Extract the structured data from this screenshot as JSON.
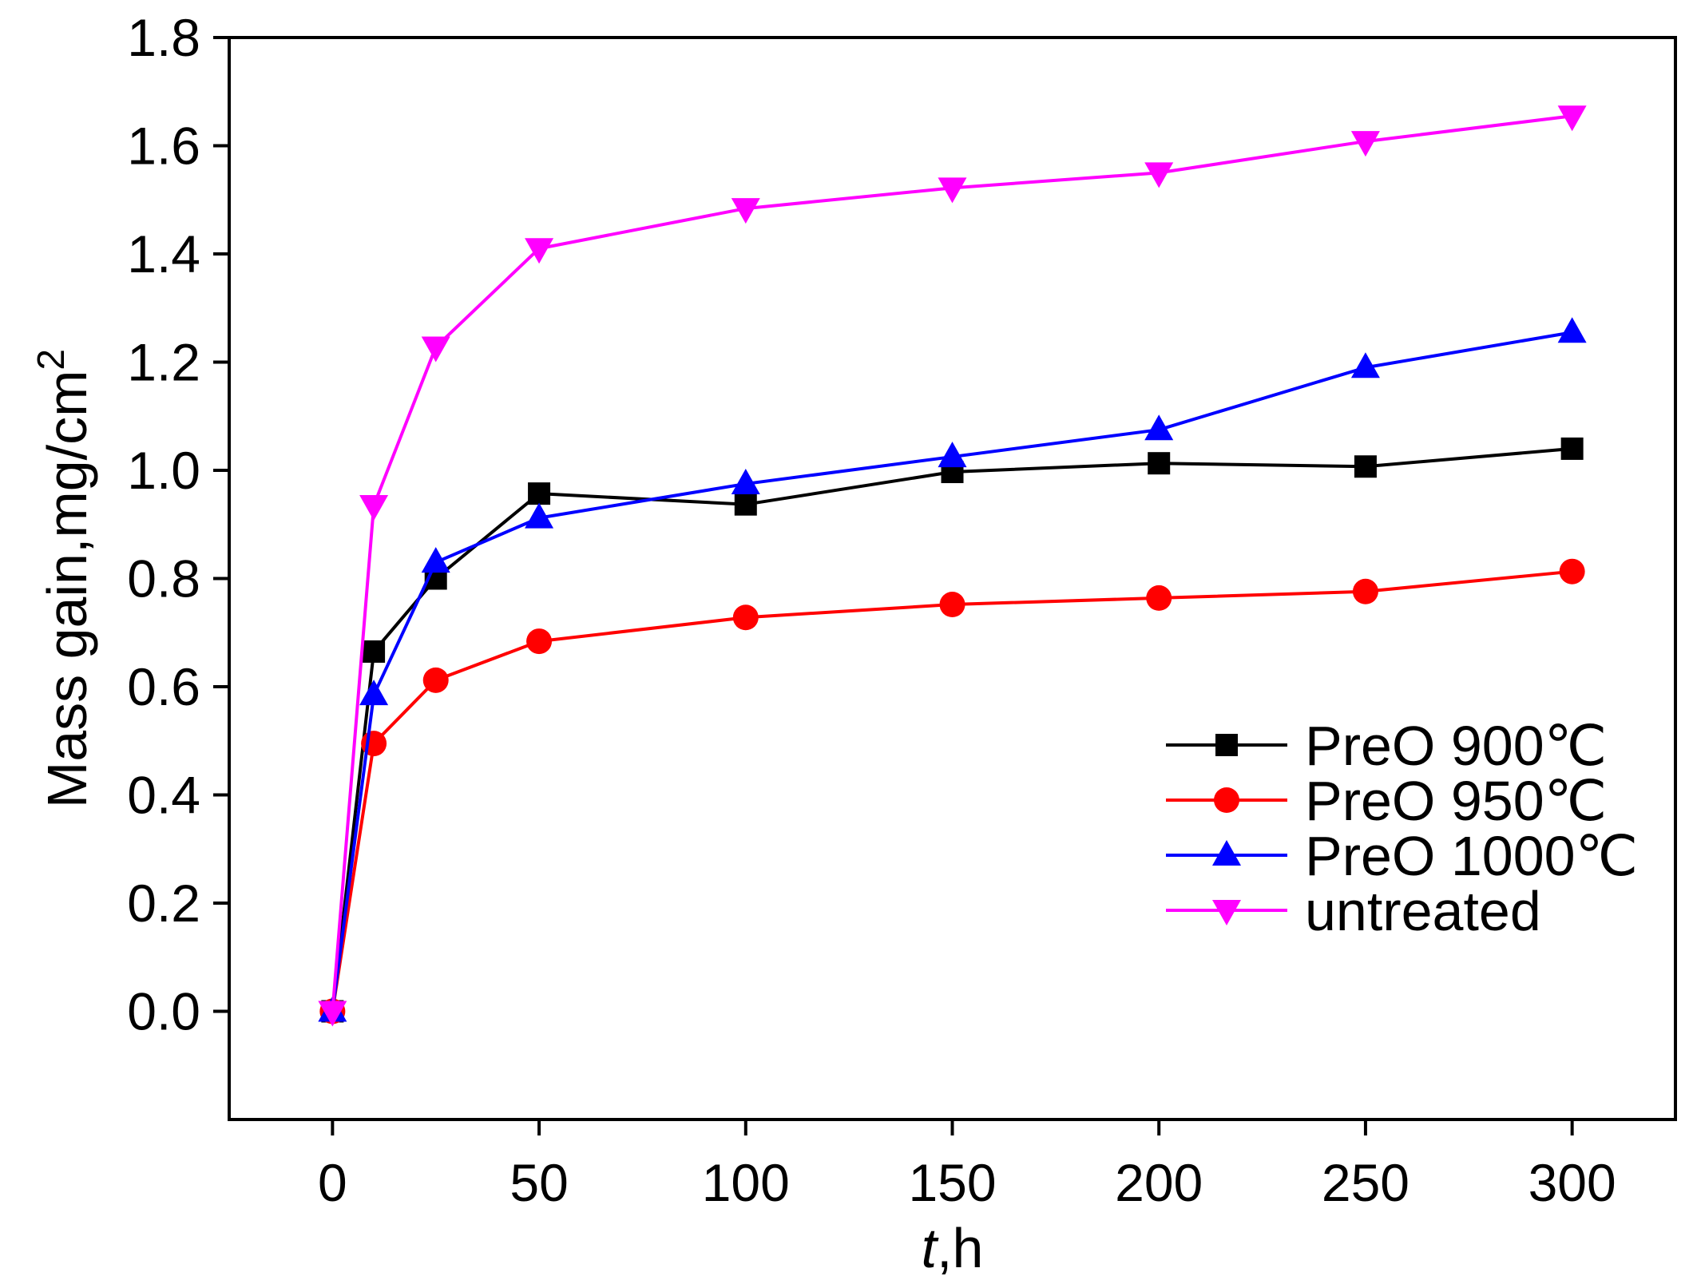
{
  "chart_data": {
    "type": "line",
    "xlabel_italic": "t",
    "xlabel_rest": ",h",
    "ylabel": "Mass gain,mg/cm",
    "ylabel_sup": "2",
    "xlim": [
      -25,
      325
    ],
    "ylim": [
      -0.2,
      1.8
    ],
    "xticks": [
      0,
      50,
      100,
      150,
      200,
      250,
      300
    ],
    "xtick_labels": [
      "0",
      "50",
      "100",
      "150",
      "200",
      "250",
      "300"
    ],
    "yticks": [
      0.0,
      0.2,
      0.4,
      0.6,
      0.8,
      1.0,
      1.2,
      1.4,
      1.6,
      1.8
    ],
    "ytick_labels": [
      "0.0",
      "0.2",
      "0.4",
      "0.6",
      "0.8",
      "1.0",
      "1.2",
      "1.4",
      "1.6",
      "1.8"
    ],
    "grid": false,
    "legend_position": "lower-right",
    "x": [
      0,
      10,
      25,
      50,
      100,
      150,
      200,
      250,
      300
    ],
    "series": [
      {
        "name": "PreO 900℃",
        "color": "#000000",
        "marker": "square",
        "values": [
          0,
          0.665,
          0.8,
          0.957,
          0.937,
          0.997,
          1.013,
          1.007,
          1.04
        ]
      },
      {
        "name": "PreO 950℃",
        "color": "#ff0000",
        "marker": "circle",
        "values": [
          0,
          0.495,
          0.612,
          0.684,
          0.728,
          0.752,
          0.764,
          0.776,
          0.813
        ]
      },
      {
        "name": "PreO 1000℃",
        "color": "#0000ff",
        "marker": "triangle-up",
        "values": [
          0,
          0.585,
          0.83,
          0.912,
          0.975,
          1.025,
          1.075,
          1.19,
          1.255
        ]
      },
      {
        "name": "untreated",
        "color": "#ff00ff",
        "marker": "triangle-down",
        "values": [
          0,
          0.935,
          1.228,
          1.41,
          1.484,
          1.522,
          1.55,
          1.608,
          1.655
        ]
      }
    ]
  }
}
